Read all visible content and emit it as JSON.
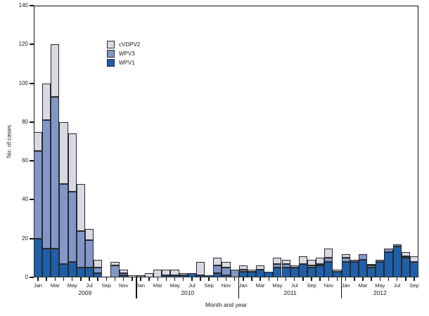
{
  "chart_data": {
    "type": "bar",
    "stacked": true,
    "title": "",
    "xlabel": "Month and year",
    "ylabel": "No. of cases",
    "ylim": [
      0,
      140
    ],
    "yticks": [
      0,
      20,
      40,
      60,
      80,
      100,
      120,
      140
    ],
    "grid": false,
    "legend_position": "upper-left-inside",
    "legend": [
      "cVDPV2",
      "WPV3",
      "WPV1"
    ],
    "colors": {
      "WPV1": "#1e5fa9",
      "WPV3": "#8296c8",
      "cVDPV2": "#d8d9e3",
      "outline": "#2a2a2a",
      "axis": "#111111"
    },
    "years": [
      {
        "label": "2009",
        "n_months": 12
      },
      {
        "label": "2010",
        "n_months": 12
      },
      {
        "label": "2011",
        "n_months": 12
      },
      {
        "label": "2012",
        "n_months": 9
      }
    ],
    "months": [
      "Jan",
      "Feb",
      "Mar",
      "Apr",
      "May",
      "Jun",
      "Jul",
      "Aug",
      "Sep",
      "Oct",
      "Nov",
      "Dec",
      "Jan",
      "Feb",
      "Mar",
      "Apr",
      "May",
      "Jun",
      "Jul",
      "Aug",
      "Sep",
      "Oct",
      "Nov",
      "Dec",
      "Jan",
      "Feb",
      "Mar",
      "Apr",
      "May",
      "Jun",
      "Jul",
      "Aug",
      "Sep",
      "Oct",
      "Nov",
      "Dec",
      "Jan",
      "Feb",
      "Mar",
      "Apr",
      "May",
      "Jun",
      "Jul",
      "Aug",
      "Sep"
    ],
    "series": [
      {
        "name": "WPV1",
        "color": "#1e5fa9",
        "values": [
          20,
          15,
          15,
          7,
          8,
          5,
          5,
          2,
          0,
          0,
          1,
          0,
          0,
          0,
          0,
          1,
          1,
          1,
          2,
          1,
          1,
          2,
          1,
          0,
          3,
          3,
          4,
          3,
          5,
          5,
          5,
          7,
          5,
          6,
          8,
          3,
          8,
          8,
          9,
          5,
          8,
          13,
          16,
          10,
          8
        ]
      },
      {
        "name": "WPV3",
        "color": "#8296c8",
        "values": [
          45,
          66,
          78,
          41,
          36,
          19,
          14,
          3,
          0,
          6,
          1,
          0,
          1,
          0,
          0,
          0,
          0,
          0,
          0,
          0,
          0,
          4,
          4,
          4,
          1,
          0,
          0,
          0,
          2,
          2,
          0,
          0,
          1,
          1,
          2,
          0,
          2,
          1,
          3,
          1,
          1,
          2,
          1,
          1,
          0
        ]
      },
      {
        "name": "cVDPV2",
        "color": "#d8d9e3",
        "values": [
          10,
          19,
          27,
          32,
          30,
          24,
          6,
          4,
          0,
          2,
          2,
          1,
          0,
          2,
          4,
          3,
          3,
          1,
          0,
          7,
          0,
          4,
          3,
          0,
          2,
          1,
          2,
          0,
          3,
          2,
          1,
          4,
          3,
          3,
          5,
          1,
          2,
          0,
          0,
          1,
          0,
          0,
          0,
          2,
          3
        ]
      }
    ]
  }
}
